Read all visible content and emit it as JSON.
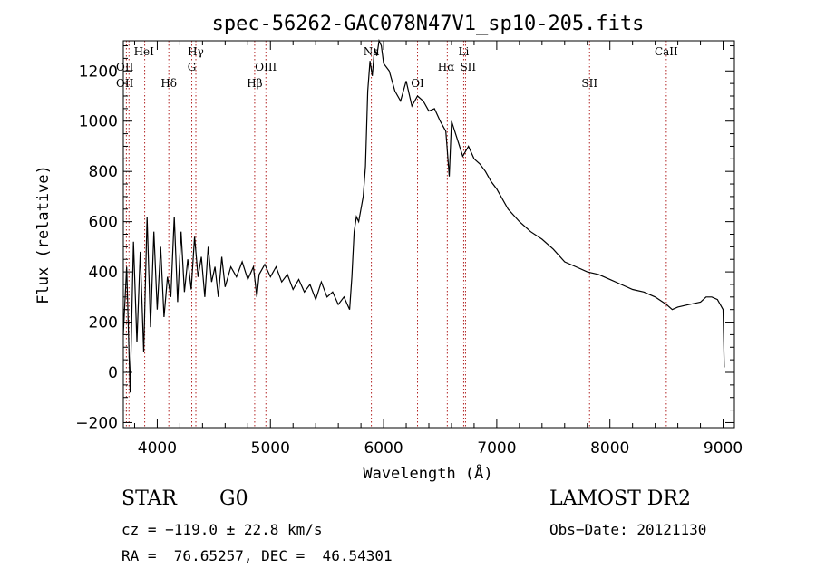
{
  "chart_data": {
    "type": "line",
    "title": "spec-56262-GAC078N47V1_sp10-205.fits",
    "xlabel": "Wavelength (Å)",
    "ylabel": "Flux (relative)",
    "xlim": [
      3700,
      9100
    ],
    "ylim": [
      -220,
      1320
    ],
    "xticks": [
      4000,
      5000,
      6000,
      7000,
      8000,
      9000
    ],
    "yticks": [
      -200,
      0,
      200,
      400,
      600,
      800,
      1000,
      1200
    ],
    "grid": false,
    "line_color": "#000000",
    "marker_color": "#b22222",
    "series": [
      {
        "x": [
          3700,
          3730,
          3760,
          3790,
          3820,
          3850,
          3880,
          3910,
          3940,
          3970,
          4000,
          4030,
          4060,
          4090,
          4120,
          4150,
          4180,
          4210,
          4240,
          4270,
          4300,
          4330,
          4360,
          4390,
          4420,
          4450,
          4480,
          4510,
          4540,
          4570,
          4600,
          4650,
          4700,
          4750,
          4800,
          4850,
          4880,
          4900,
          4950,
          5000,
          5050,
          5100,
          5150,
          5200,
          5250,
          5300,
          5350,
          5400,
          5450,
          5500,
          5550,
          5600,
          5650,
          5700,
          5720,
          5740,
          5760,
          5780,
          5800,
          5820,
          5840,
          5860,
          5880,
          5900,
          5920,
          5940,
          5960,
          5980,
          6000,
          6050,
          6100,
          6150,
          6200,
          6250,
          6300,
          6350,
          6400,
          6450,
          6500,
          6550,
          6560,
          6580,
          6600,
          6650,
          6700,
          6750,
          6800,
          6850,
          6900,
          6950,
          7000,
          7100,
          7200,
          7300,
          7400,
          7500,
          7600,
          7700,
          7800,
          7900,
          8000,
          8100,
          8200,
          8300,
          8400,
          8500,
          8550,
          8600,
          8700,
          8800,
          8850,
          8900,
          8950,
          9000,
          9010
        ],
        "y": [
          150,
          420,
          -80,
          520,
          120,
          480,
          80,
          620,
          180,
          560,
          250,
          500,
          220,
          380,
          300,
          620,
          280,
          560,
          320,
          450,
          330,
          540,
          380,
          460,
          300,
          500,
          360,
          420,
          300,
          460,
          340,
          420,
          380,
          440,
          370,
          420,
          300,
          390,
          430,
          380,
          420,
          360,
          390,
          330,
          370,
          320,
          350,
          290,
          360,
          300,
          320,
          270,
          300,
          250,
          380,
          560,
          620,
          600,
          650,
          700,
          820,
          1120,
          1240,
          1180,
          1290,
          1260,
          1320,
          1300,
          1230,
          1200,
          1120,
          1080,
          1160,
          1060,
          1100,
          1080,
          1040,
          1050,
          1000,
          960,
          900,
          780,
          1000,
          930,
          860,
          900,
          850,
          830,
          800,
          760,
          730,
          650,
          600,
          560,
          530,
          490,
          440,
          420,
          400,
          390,
          370,
          350,
          330,
          320,
          300,
          270,
          250,
          260,
          270,
          280,
          300,
          300,
          290,
          250,
          20
        ]
      }
    ],
    "lines": [
      {
        "wavelength": 3727,
        "label": "OII"
      },
      {
        "wavelength": 3750,
        "label": "OII"
      },
      {
        "wavelength": 3889,
        "label": "HeI"
      },
      {
        "wavelength": 4102,
        "label": "Hδ"
      },
      {
        "wavelength": 4305,
        "label": "G"
      },
      {
        "wavelength": 4341,
        "label": "Hγ"
      },
      {
        "wavelength": 4861,
        "label": "Hβ"
      },
      {
        "wavelength": 4960,
        "label": "OIII"
      },
      {
        "wavelength": 5892,
        "label": "Na"
      },
      {
        "wavelength": 6300,
        "label": "OI"
      },
      {
        "wavelength": 6563,
        "label": "Hα"
      },
      {
        "wavelength": 6708,
        "label": "Li"
      },
      {
        "wavelength": 6724,
        "label": "SII"
      },
      {
        "wavelength": 7820,
        "label": "SII"
      },
      {
        "wavelength": 8498,
        "label": "CaII"
      }
    ]
  },
  "info": {
    "class_label": "STAR",
    "subclass": "G0",
    "survey": "LAMOST DR2",
    "cz": "cz = −119.0 ± 22.8 km/s",
    "obs_date": "Obs−Date: 20121130",
    "coords": "RA =  76.65257, DEC =  46.54301"
  }
}
